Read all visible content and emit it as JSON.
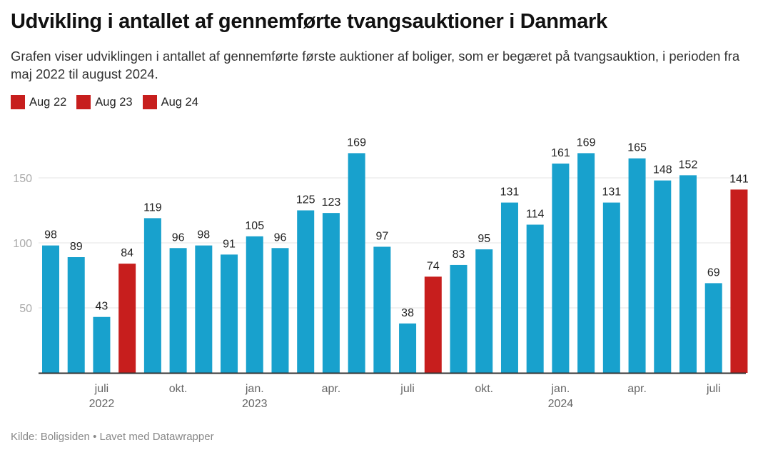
{
  "title": "Udvikling i antallet af gennemførte tvangsauktioner i Danmark",
  "subtitle": "Grafen viser udviklingen i antallet af gennemførte første auktioner af boliger, som er begæret på tvangsauktion, i perioden fra maj 2022 til august 2024.",
  "legend": [
    {
      "label": "Aug 22",
      "color": "#c71e1d"
    },
    {
      "label": "Aug 23",
      "color": "#c71e1d"
    },
    {
      "label": "Aug 24",
      "color": "#c71e1d"
    }
  ],
  "footer": "Kilde: Boligsiden • Lavet med Datawrapper",
  "colors": {
    "default": "#18a1cd",
    "highlight": "#c71e1d",
    "axis": "#333333",
    "grid": "#e6e6e6"
  },
  "chart_data": {
    "type": "bar",
    "title": "Udvikling i antallet af gennemførte tvangsauktioner i Danmark",
    "xlabel": "",
    "ylabel": "",
    "ylim": [
      0,
      180
    ],
    "yticks": [
      50,
      100,
      150
    ],
    "grid": true,
    "legend_position": "top-left",
    "categories": [
      "2022-05",
      "2022-06",
      "2022-07",
      "2022-08",
      "2022-09",
      "2022-10",
      "2022-11",
      "2022-12",
      "2023-01",
      "2023-02",
      "2023-03",
      "2023-04",
      "2023-05",
      "2023-06",
      "2023-07",
      "2023-08",
      "2023-09",
      "2023-10",
      "2023-11",
      "2023-12",
      "2024-01",
      "2024-02",
      "2024-03",
      "2024-04",
      "2024-05",
      "2024-06",
      "2024-07",
      "2024-08"
    ],
    "values": [
      98,
      89,
      43,
      84,
      119,
      96,
      98,
      91,
      105,
      96,
      125,
      123,
      169,
      97,
      38,
      74,
      83,
      95,
      131,
      114,
      161,
      169,
      131,
      165,
      148,
      152,
      69,
      141
    ],
    "highlighted": [
      "2022-08",
      "2023-08",
      "2024-08"
    ],
    "xtick_labels": [
      {
        "category": "2022-07",
        "label": "juli",
        "year": "2022"
      },
      {
        "category": "2022-10",
        "label": "okt.",
        "year": ""
      },
      {
        "category": "2023-01",
        "label": "jan.",
        "year": "2023"
      },
      {
        "category": "2023-04",
        "label": "apr.",
        "year": ""
      },
      {
        "category": "2023-07",
        "label": "juli",
        "year": ""
      },
      {
        "category": "2023-10",
        "label": "okt.",
        "year": ""
      },
      {
        "category": "2024-01",
        "label": "jan.",
        "year": "2024"
      },
      {
        "category": "2024-04",
        "label": "apr.",
        "year": ""
      },
      {
        "category": "2024-07",
        "label": "juli",
        "year": ""
      }
    ]
  }
}
